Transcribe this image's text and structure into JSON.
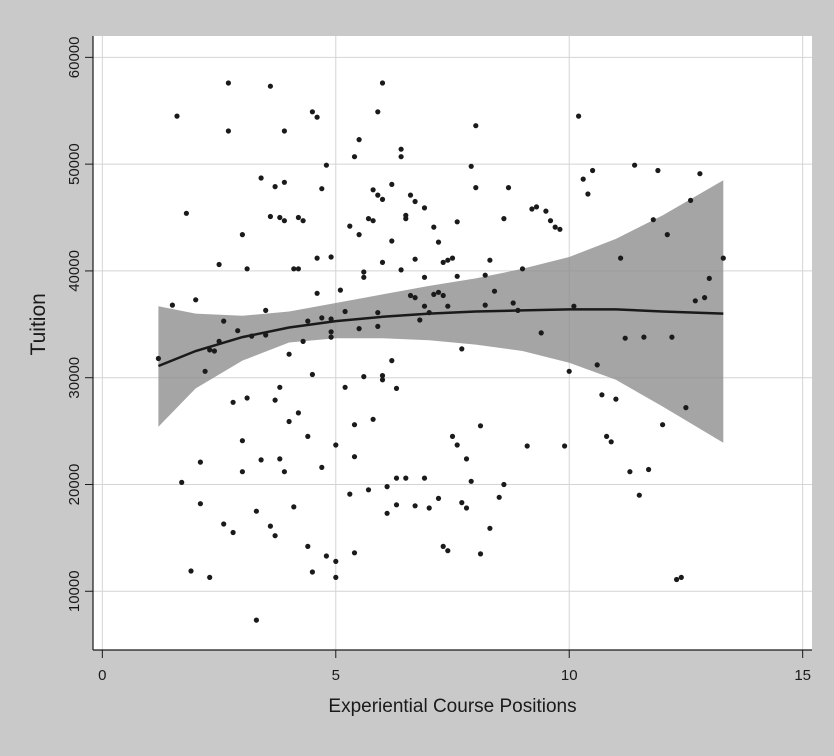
{
  "chart_data": {
    "type": "scatter",
    "xlabel": "Experiential Course Positions",
    "ylabel": "Tuition",
    "xlim": [
      -0.2,
      15.2
    ],
    "ylim": [
      4500,
      62000
    ],
    "x_ticks": [
      0,
      5,
      10,
      15
    ],
    "y_ticks": [
      10000,
      20000,
      30000,
      40000,
      50000,
      60000
    ],
    "x_tick_labels": [
      "0",
      "5",
      "10",
      "15"
    ],
    "y_tick_labels": [
      "10000",
      "20000",
      "30000",
      "40000",
      "50000",
      "60000"
    ],
    "grid": true,
    "colors": {
      "background": "#c9c9c9",
      "plot_area": "#ffffff",
      "points": "#1a1a1a",
      "fit_line": "#1a1a1a",
      "confidence_band": "#8c8c8c",
      "grid": "#d4d4d4",
      "text": "#1a1a1a"
    },
    "points": [
      [
        1.2,
        31800
      ],
      [
        1.5,
        36800
      ],
      [
        1.6,
        54500
      ],
      [
        1.7,
        20200
      ],
      [
        1.8,
        45400
      ],
      [
        1.9,
        11900
      ],
      [
        2.0,
        37300
      ],
      [
        2.1,
        18200
      ],
      [
        2.1,
        22100
      ],
      [
        2.2,
        30600
      ],
      [
        2.3,
        32600
      ],
      [
        2.3,
        11300
      ],
      [
        2.4,
        32500
      ],
      [
        2.5,
        40600
      ],
      [
        2.5,
        33400
      ],
      [
        2.6,
        16300
      ],
      [
        2.6,
        35300
      ],
      [
        2.7,
        57600
      ],
      [
        2.7,
        53100
      ],
      [
        2.8,
        15500
      ],
      [
        2.8,
        27700
      ],
      [
        2.9,
        34400
      ],
      [
        3.0,
        43400
      ],
      [
        3.0,
        24100
      ],
      [
        3.0,
        21200
      ],
      [
        3.1,
        28100
      ],
      [
        3.1,
        40200
      ],
      [
        3.2,
        33900
      ],
      [
        3.3,
        17500
      ],
      [
        3.4,
        48700
      ],
      [
        3.4,
        22300
      ],
      [
        3.5,
        36300
      ],
      [
        3.5,
        34000
      ],
      [
        3.6,
        45100
      ],
      [
        3.6,
        57300
      ],
      [
        3.6,
        16100
      ],
      [
        3.7,
        15200
      ],
      [
        3.7,
        47900
      ],
      [
        3.7,
        27900
      ],
      [
        3.8,
        45000
      ],
      [
        3.8,
        29100
      ],
      [
        3.8,
        22400
      ],
      [
        3.9,
        53100
      ],
      [
        3.9,
        44700
      ],
      [
        3.9,
        48300
      ],
      [
        3.9,
        21200
      ],
      [
        4.0,
        32200
      ],
      [
        4.0,
        25900
      ],
      [
        4.1,
        40200
      ],
      [
        4.1,
        17900
      ],
      [
        4.2,
        45000
      ],
      [
        4.2,
        40200
      ],
      [
        4.2,
        26700
      ],
      [
        4.3,
        44700
      ],
      [
        4.3,
        33400
      ],
      [
        4.4,
        35300
      ],
      [
        4.4,
        24500
      ],
      [
        4.4,
        14200
      ],
      [
        4.5,
        11800
      ],
      [
        4.5,
        30300
      ],
      [
        4.5,
        54900
      ],
      [
        4.6,
        54400
      ],
      [
        4.6,
        41200
      ],
      [
        4.6,
        37900
      ],
      [
        4.7,
        35600
      ],
      [
        4.7,
        47700
      ],
      [
        4.7,
        21600
      ],
      [
        4.8,
        13300
      ],
      [
        4.8,
        49900
      ],
      [
        4.9,
        41300
      ],
      [
        4.9,
        35500
      ],
      [
        4.9,
        33800
      ],
      [
        4.9,
        34300
      ],
      [
        5.0,
        23700
      ],
      [
        5.0,
        12800
      ],
      [
        5.0,
        11300
      ],
      [
        5.1,
        38200
      ],
      [
        5.2,
        36200
      ],
      [
        5.2,
        29100
      ],
      [
        5.3,
        44200
      ],
      [
        5.3,
        19100
      ],
      [
        5.4,
        50700
      ],
      [
        5.4,
        25600
      ],
      [
        5.4,
        22600
      ],
      [
        5.4,
        13600
      ],
      [
        5.5,
        52300
      ],
      [
        5.5,
        43400
      ],
      [
        5.5,
        34600
      ],
      [
        5.6,
        39400
      ],
      [
        5.6,
        39900
      ],
      [
        5.6,
        30100
      ],
      [
        5.7,
        44900
      ],
      [
        5.7,
        19500
      ],
      [
        5.8,
        44700
      ],
      [
        5.8,
        47600
      ],
      [
        5.8,
        26100
      ],
      [
        5.9,
        54900
      ],
      [
        5.9,
        47100
      ],
      [
        5.9,
        36100
      ],
      [
        5.9,
        34800
      ],
      [
        6.0,
        46700
      ],
      [
        6.0,
        40800
      ],
      [
        6.0,
        30200
      ],
      [
        6.0,
        29800
      ],
      [
        6.1,
        17300
      ],
      [
        6.1,
        19800
      ],
      [
        6.2,
        48100
      ],
      [
        6.2,
        42800
      ],
      [
        6.2,
        31600
      ],
      [
        6.3,
        29000
      ],
      [
        6.3,
        20600
      ],
      [
        6.3,
        18100
      ],
      [
        6.4,
        50700
      ],
      [
        6.4,
        51400
      ],
      [
        6.4,
        40100
      ],
      [
        6.5,
        45200
      ],
      [
        6.5,
        44900
      ],
      [
        6.5,
        20600
      ],
      [
        6.6,
        47100
      ],
      [
        6.6,
        37700
      ],
      [
        6.7,
        46500
      ],
      [
        6.7,
        41100
      ],
      [
        6.7,
        37500
      ],
      [
        6.7,
        18000
      ],
      [
        6.8,
        35400
      ],
      [
        6.9,
        45900
      ],
      [
        6.9,
        39400
      ],
      [
        6.9,
        36700
      ],
      [
        6.9,
        20600
      ],
      [
        7.0,
        36100
      ],
      [
        7.0,
        17800
      ],
      [
        7.1,
        44100
      ],
      [
        7.1,
        37800
      ],
      [
        7.2,
        42700
      ],
      [
        7.2,
        38000
      ],
      [
        7.2,
        18700
      ],
      [
        7.3,
        40800
      ],
      [
        7.3,
        37700
      ],
      [
        7.3,
        14200
      ],
      [
        7.4,
        41000
      ],
      [
        7.4,
        36700
      ],
      [
        7.4,
        13800
      ],
      [
        7.5,
        41200
      ],
      [
        7.5,
        24500
      ],
      [
        7.6,
        39500
      ],
      [
        7.6,
        23700
      ],
      [
        7.6,
        44600
      ],
      [
        7.7,
        18300
      ],
      [
        7.7,
        32700
      ],
      [
        7.8,
        22400
      ],
      [
        7.8,
        17800
      ],
      [
        7.9,
        20300
      ],
      [
        7.9,
        49800
      ],
      [
        8.0,
        53600
      ],
      [
        8.0,
        47800
      ],
      [
        8.1,
        25500
      ],
      [
        8.1,
        13500
      ],
      [
        8.2,
        36800
      ],
      [
        8.2,
        39600
      ],
      [
        8.3,
        41000
      ],
      [
        8.3,
        15900
      ],
      [
        8.4,
        38100
      ],
      [
        8.5,
        18800
      ],
      [
        8.6,
        20000
      ],
      [
        8.6,
        44900
      ],
      [
        8.7,
        47800
      ],
      [
        8.8,
        37000
      ],
      [
        8.9,
        36300
      ],
      [
        9.0,
        40200
      ],
      [
        9.1,
        23600
      ],
      [
        9.2,
        45800
      ],
      [
        9.3,
        46000
      ],
      [
        9.4,
        34200
      ],
      [
        9.5,
        45600
      ],
      [
        9.6,
        44700
      ],
      [
        9.7,
        44100
      ],
      [
        9.8,
        43900
      ],
      [
        9.9,
        23600
      ],
      [
        10.0,
        30600
      ],
      [
        10.1,
        36700
      ],
      [
        10.2,
        54500
      ],
      [
        10.3,
        48600
      ],
      [
        10.4,
        47200
      ],
      [
        10.5,
        49400
      ],
      [
        10.6,
        31200
      ],
      [
        10.7,
        28400
      ],
      [
        10.8,
        24500
      ],
      [
        10.9,
        24000
      ],
      [
        11.0,
        28000
      ],
      [
        11.1,
        41200
      ],
      [
        11.2,
        33700
      ],
      [
        11.3,
        21200
      ],
      [
        11.4,
        49900
      ],
      [
        11.5,
        19000
      ],
      [
        11.6,
        33800
      ],
      [
        11.7,
        21400
      ],
      [
        11.8,
        44800
      ],
      [
        11.9,
        49400
      ],
      [
        12.0,
        25600
      ],
      [
        12.1,
        43400
      ],
      [
        12.2,
        33800
      ],
      [
        12.3,
        11100
      ],
      [
        12.4,
        11300
      ],
      [
        12.5,
        27200
      ],
      [
        12.6,
        46600
      ],
      [
        12.7,
        37200
      ],
      [
        12.8,
        49100
      ],
      [
        12.9,
        37500
      ],
      [
        13.0,
        39300
      ],
      [
        13.3,
        41200
      ],
      [
        3.3,
        7300
      ],
      [
        6.0,
        57600
      ]
    ],
    "fit_line": [
      [
        1.2,
        31100
      ],
      [
        2,
        32500
      ],
      [
        3,
        33800
      ],
      [
        4,
        34700
      ],
      [
        5,
        35300
      ],
      [
        6,
        35700
      ],
      [
        7,
        36000
      ],
      [
        8,
        36200
      ],
      [
        9,
        36300
      ],
      [
        10,
        36400
      ],
      [
        11,
        36400
      ],
      [
        12,
        36200
      ],
      [
        13.3,
        36000
      ]
    ],
    "confidence_band": {
      "upper": [
        [
          1.2,
          36700
        ],
        [
          2,
          36000
        ],
        [
          3,
          35800
        ],
        [
          4,
          36200
        ],
        [
          5,
          37000
        ],
        [
          6,
          37800
        ],
        [
          7,
          38600
        ],
        [
          8,
          39300
        ],
        [
          9,
          40200
        ],
        [
          10,
          41300
        ],
        [
          11,
          43000
        ],
        [
          12,
          45200
        ],
        [
          13.3,
          48500
        ]
      ],
      "lower": [
        [
          1.2,
          25400
        ],
        [
          2,
          29000
        ],
        [
          3,
          31600
        ],
        [
          4,
          33300
        ],
        [
          5,
          33700
        ],
        [
          6,
          33700
        ],
        [
          7,
          33500
        ],
        [
          8,
          33100
        ],
        [
          9,
          32500
        ],
        [
          10,
          31400
        ],
        [
          11,
          29800
        ],
        [
          12,
          27300
        ],
        [
          13.3,
          23900
        ]
      ]
    }
  }
}
